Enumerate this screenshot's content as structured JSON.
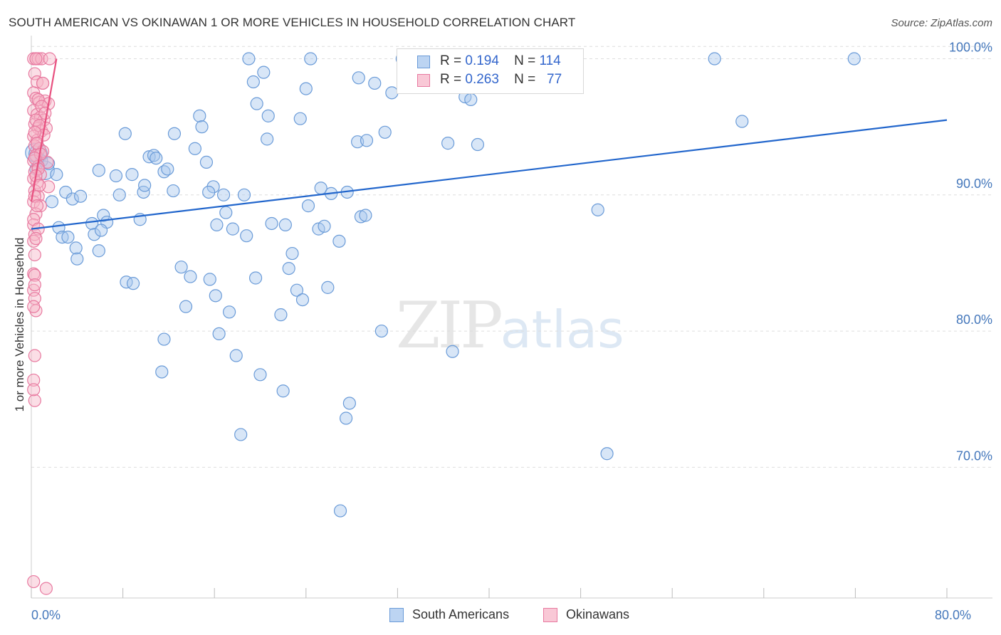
{
  "header": {
    "title": "SOUTH AMERICAN VS OKINAWAN 1 OR MORE VEHICLES IN HOUSEHOLD CORRELATION CHART",
    "source": "Source: ZipAtlas.com"
  },
  "watermark": {
    "zip": "ZIP",
    "atlas": "atlas"
  },
  "legend_top": {
    "row1": {
      "r_label": "R =",
      "r_value": "0.194",
      "n_label": "N =",
      "n_value": "114"
    },
    "row2": {
      "r_label": "R =",
      "r_value": "0.263",
      "n_label": "N =",
      "n_value": "77"
    }
  },
  "legend_bottom": {
    "south": "South Americans",
    "okinawan": "Okinawans"
  },
  "colors": {
    "blue_fill": "#a8c8ee",
    "blue_stroke": "#6a9bd8",
    "blue_line": "#2266cc",
    "pink_fill": "#f6b6c8",
    "pink_stroke": "#e87aa0",
    "pink_line": "#e8507f",
    "grid": "#dddddd",
    "tick_text": "#4477bb"
  },
  "chart_data": {
    "type": "scatter",
    "title": "SOUTH AMERICAN VS OKINAWAN 1 OR MORE VEHICLES IN HOUSEHOLD CORRELATION CHART",
    "xlabel": "",
    "ylabel": "1 or more Vehicles in Household",
    "xlim": [
      0,
      80
    ],
    "ylim": [
      60.4,
      101.7
    ],
    "x_tick_labels": [
      {
        "x": 0,
        "label": "0.0%"
      },
      {
        "x": 80,
        "label": "80.0%"
      }
    ],
    "y_tick_labels": [
      {
        "y": 100,
        "label": "100.0%"
      },
      {
        "y": 90,
        "label": "90.0%"
      },
      {
        "y": 80,
        "label": "80.0%"
      },
      {
        "y": 70,
        "label": "70.0%"
      }
    ],
    "series": [
      {
        "name": "South Americans",
        "R": 0.194,
        "N": 114,
        "trend": {
          "x": [
            0,
            80
          ],
          "y": [
            87.5,
            95.5
          ]
        },
        "points": [
          {
            "x": 0.3,
            "y": 93.1,
            "s": "L"
          },
          {
            "x": 0.6,
            "y": 93.0,
            "s": "L"
          },
          {
            "x": 1.2,
            "y": 91.8,
            "s": "L"
          },
          {
            "x": 2.2,
            "y": 91.5
          },
          {
            "x": 1.8,
            "y": 89.5
          },
          {
            "x": 2.4,
            "y": 87.6
          },
          {
            "x": 2.7,
            "y": 86.9
          },
          {
            "x": 3.2,
            "y": 86.9
          },
          {
            "x": 3.0,
            "y": 90.2
          },
          {
            "x": 3.6,
            "y": 89.7
          },
          {
            "x": 4.3,
            "y": 89.9
          },
          {
            "x": 3.9,
            "y": 86.1
          },
          {
            "x": 4.0,
            "y": 85.3
          },
          {
            "x": 5.3,
            "y": 87.9
          },
          {
            "x": 5.5,
            "y": 87.1
          },
          {
            "x": 5.9,
            "y": 85.9
          },
          {
            "x": 6.3,
            "y": 88.5
          },
          {
            "x": 6.6,
            "y": 88.0
          },
          {
            "x": 6.1,
            "y": 87.4
          },
          {
            "x": 5.9,
            "y": 91.8
          },
          {
            "x": 7.4,
            "y": 91.4
          },
          {
            "x": 7.7,
            "y": 90.0
          },
          {
            "x": 8.2,
            "y": 94.5
          },
          {
            "x": 8.8,
            "y": 91.5
          },
          {
            "x": 9.5,
            "y": 88.2
          },
          {
            "x": 9.8,
            "y": 90.2
          },
          {
            "x": 9.9,
            "y": 90.7
          },
          {
            "x": 10.3,
            "y": 92.8
          },
          {
            "x": 10.7,
            "y": 92.9
          },
          {
            "x": 10.9,
            "y": 92.7
          },
          {
            "x": 11.6,
            "y": 91.7
          },
          {
            "x": 11.9,
            "y": 91.9
          },
          {
            "x": 12.5,
            "y": 94.5
          },
          {
            "x": 12.4,
            "y": 90.3
          },
          {
            "x": 13.1,
            "y": 84.7
          },
          {
            "x": 13.5,
            "y": 81.8
          },
          {
            "x": 13.9,
            "y": 84.0
          },
          {
            "x": 14.3,
            "y": 93.4
          },
          {
            "x": 14.7,
            "y": 95.8
          },
          {
            "x": 14.9,
            "y": 95.0
          },
          {
            "x": 15.3,
            "y": 92.4
          },
          {
            "x": 15.6,
            "y": 83.8
          },
          {
            "x": 15.9,
            "y": 90.6
          },
          {
            "x": 15.5,
            "y": 90.2
          },
          {
            "x": 16.2,
            "y": 87.8
          },
          {
            "x": 16.4,
            "y": 79.8
          },
          {
            "x": 16.8,
            "y": 90.0
          },
          {
            "x": 17.0,
            "y": 88.7
          },
          {
            "x": 17.3,
            "y": 81.4
          },
          {
            "x": 17.6,
            "y": 87.5
          },
          {
            "x": 17.9,
            "y": 78.2
          },
          {
            "x": 18.3,
            "y": 72.4
          },
          {
            "x": 18.6,
            "y": 90.0
          },
          {
            "x": 18.8,
            "y": 87.0
          },
          {
            "x": 19.0,
            "y": 100.0
          },
          {
            "x": 19.4,
            "y": 98.3
          },
          {
            "x": 19.7,
            "y": 96.7
          },
          {
            "x": 20.0,
            "y": 76.8
          },
          {
            "x": 20.3,
            "y": 99.0
          },
          {
            "x": 20.7,
            "y": 95.8
          },
          {
            "x": 20.6,
            "y": 94.1
          },
          {
            "x": 21.8,
            "y": 81.2
          },
          {
            "x": 22.0,
            "y": 75.6
          },
          {
            "x": 22.2,
            "y": 87.8
          },
          {
            "x": 22.5,
            "y": 84.6
          },
          {
            "x": 22.8,
            "y": 85.7
          },
          {
            "x": 23.2,
            "y": 83.0
          },
          {
            "x": 23.5,
            "y": 95.6
          },
          {
            "x": 23.7,
            "y": 82.3
          },
          {
            "x": 24.0,
            "y": 97.8
          },
          {
            "x": 24.2,
            "y": 89.2
          },
          {
            "x": 24.4,
            "y": 100.0
          },
          {
            "x": 25.1,
            "y": 87.5
          },
          {
            "x": 25.3,
            "y": 90.5
          },
          {
            "x": 25.6,
            "y": 87.7
          },
          {
            "x": 25.9,
            "y": 83.2
          },
          {
            "x": 26.2,
            "y": 90.1
          },
          {
            "x": 26.9,
            "y": 86.6
          },
          {
            "x": 27.0,
            "y": 66.8
          },
          {
            "x": 27.5,
            "y": 73.6
          },
          {
            "x": 27.8,
            "y": 74.7
          },
          {
            "x": 27.6,
            "y": 90.2
          },
          {
            "x": 28.5,
            "y": 93.9
          },
          {
            "x": 28.8,
            "y": 88.4
          },
          {
            "x": 29.2,
            "y": 88.5
          },
          {
            "x": 28.6,
            "y": 98.6
          },
          {
            "x": 29.3,
            "y": 94.0
          },
          {
            "x": 30.0,
            "y": 98.2
          },
          {
            "x": 30.6,
            "y": 80.0
          },
          {
            "x": 30.9,
            "y": 94.6
          },
          {
            "x": 31.5,
            "y": 97.5
          },
          {
            "x": 32.4,
            "y": 100.0
          },
          {
            "x": 36.4,
            "y": 93.8
          },
          {
            "x": 36.8,
            "y": 78.5
          },
          {
            "x": 37.5,
            "y": 100.0
          },
          {
            "x": 37.9,
            "y": 97.2
          },
          {
            "x": 38.4,
            "y": 97.0
          },
          {
            "x": 39.0,
            "y": 93.7
          },
          {
            "x": 49.5,
            "y": 88.9
          },
          {
            "x": 50.3,
            "y": 71.0
          },
          {
            "x": 59.7,
            "y": 100.0
          },
          {
            "x": 62.1,
            "y": 95.4
          },
          {
            "x": 71.9,
            "y": 100.0
          },
          {
            "x": 11.6,
            "y": 79.4
          },
          {
            "x": 11.4,
            "y": 77.0
          },
          {
            "x": 8.3,
            "y": 83.6
          },
          {
            "x": 8.9,
            "y": 83.5
          },
          {
            "x": 16.1,
            "y": 82.6
          },
          {
            "x": 19.6,
            "y": 83.9
          },
          {
            "x": 21.0,
            "y": 87.9
          },
          {
            "x": 0.9,
            "y": 92.5
          },
          {
            "x": 1.5,
            "y": 92.3
          },
          {
            "x": 0.4,
            "y": 91.9
          },
          {
            "x": 0.7,
            "y": 93.4
          }
        ]
      },
      {
        "name": "Okinawans",
        "R": 0.263,
        "N": 77,
        "trend": {
          "x": [
            0,
            2.2
          ],
          "y": [
            89.5,
            100.0
          ]
        },
        "points": [
          {
            "x": 0.2,
            "y": 100.0
          },
          {
            "x": 0.4,
            "y": 100.0
          },
          {
            "x": 0.6,
            "y": 100.0
          },
          {
            "x": 0.9,
            "y": 100.0
          },
          {
            "x": 1.6,
            "y": 100.0
          },
          {
            "x": 0.3,
            "y": 98.9
          },
          {
            "x": 0.5,
            "y": 98.3
          },
          {
            "x": 1.0,
            "y": 98.2
          },
          {
            "x": 0.2,
            "y": 97.5
          },
          {
            "x": 0.4,
            "y": 97.1
          },
          {
            "x": 0.7,
            "y": 96.8
          },
          {
            "x": 1.2,
            "y": 96.9
          },
          {
            "x": 1.5,
            "y": 96.7
          },
          {
            "x": 0.2,
            "y": 96.2
          },
          {
            "x": 0.5,
            "y": 95.9
          },
          {
            "x": 0.8,
            "y": 95.7
          },
          {
            "x": 1.1,
            "y": 95.5
          },
          {
            "x": 0.3,
            "y": 95.2
          },
          {
            "x": 0.6,
            "y": 94.9
          },
          {
            "x": 0.9,
            "y": 94.7
          },
          {
            "x": 1.3,
            "y": 94.9
          },
          {
            "x": 0.2,
            "y": 94.3
          },
          {
            "x": 0.5,
            "y": 94.0
          },
          {
            "x": 0.3,
            "y": 93.6
          },
          {
            "x": 0.7,
            "y": 93.4
          },
          {
            "x": 1.0,
            "y": 93.2
          },
          {
            "x": 0.4,
            "y": 92.9
          },
          {
            "x": 0.2,
            "y": 92.5
          },
          {
            "x": 1.4,
            "y": 92.4
          },
          {
            "x": 0.6,
            "y": 92.1
          },
          {
            "x": 0.3,
            "y": 91.7
          },
          {
            "x": 0.8,
            "y": 91.5
          },
          {
            "x": 0.2,
            "y": 91.2
          },
          {
            "x": 0.5,
            "y": 90.9
          },
          {
            "x": 1.5,
            "y": 90.6
          },
          {
            "x": 0.3,
            "y": 90.3
          },
          {
            "x": 0.6,
            "y": 89.9
          },
          {
            "x": 0.2,
            "y": 89.5
          },
          {
            "x": 0.8,
            "y": 89.2
          },
          {
            "x": 0.4,
            "y": 88.6
          },
          {
            "x": 0.2,
            "y": 87.8
          },
          {
            "x": 0.3,
            "y": 87.1
          },
          {
            "x": 0.2,
            "y": 86.6
          },
          {
            "x": 0.3,
            "y": 85.6
          },
          {
            "x": 0.2,
            "y": 84.2
          },
          {
            "x": 0.3,
            "y": 84.1
          },
          {
            "x": 0.2,
            "y": 83.0
          },
          {
            "x": 0.3,
            "y": 82.4
          },
          {
            "x": 0.4,
            "y": 81.5
          },
          {
            "x": 0.2,
            "y": 81.8
          },
          {
            "x": 0.3,
            "y": 78.2
          },
          {
            "x": 0.2,
            "y": 76.4
          },
          {
            "x": 0.3,
            "y": 74.9
          },
          {
            "x": 0.2,
            "y": 75.7
          },
          {
            "x": 0.2,
            "y": 61.6
          },
          {
            "x": 1.3,
            "y": 61.1
          },
          {
            "x": 0.4,
            "y": 100.0
          },
          {
            "x": 1.0,
            "y": 98.2
          },
          {
            "x": 0.6,
            "y": 97.0
          },
          {
            "x": 0.9,
            "y": 96.5
          },
          {
            "x": 1.2,
            "y": 96.0
          },
          {
            "x": 0.4,
            "y": 95.5
          },
          {
            "x": 0.7,
            "y": 95.1
          },
          {
            "x": 1.1,
            "y": 94.4
          },
          {
            "x": 0.3,
            "y": 94.6
          },
          {
            "x": 0.5,
            "y": 93.8
          },
          {
            "x": 0.8,
            "y": 93.0
          },
          {
            "x": 0.3,
            "y": 92.7
          },
          {
            "x": 0.6,
            "y": 91.9
          },
          {
            "x": 0.4,
            "y": 91.4
          },
          {
            "x": 0.7,
            "y": 90.7
          },
          {
            "x": 0.3,
            "y": 89.9
          },
          {
            "x": 0.5,
            "y": 89.2
          },
          {
            "x": 0.2,
            "y": 88.2
          },
          {
            "x": 0.6,
            "y": 87.5
          },
          {
            "x": 0.4,
            "y": 86.8
          },
          {
            "x": 0.3,
            "y": 83.4
          }
        ]
      }
    ]
  }
}
